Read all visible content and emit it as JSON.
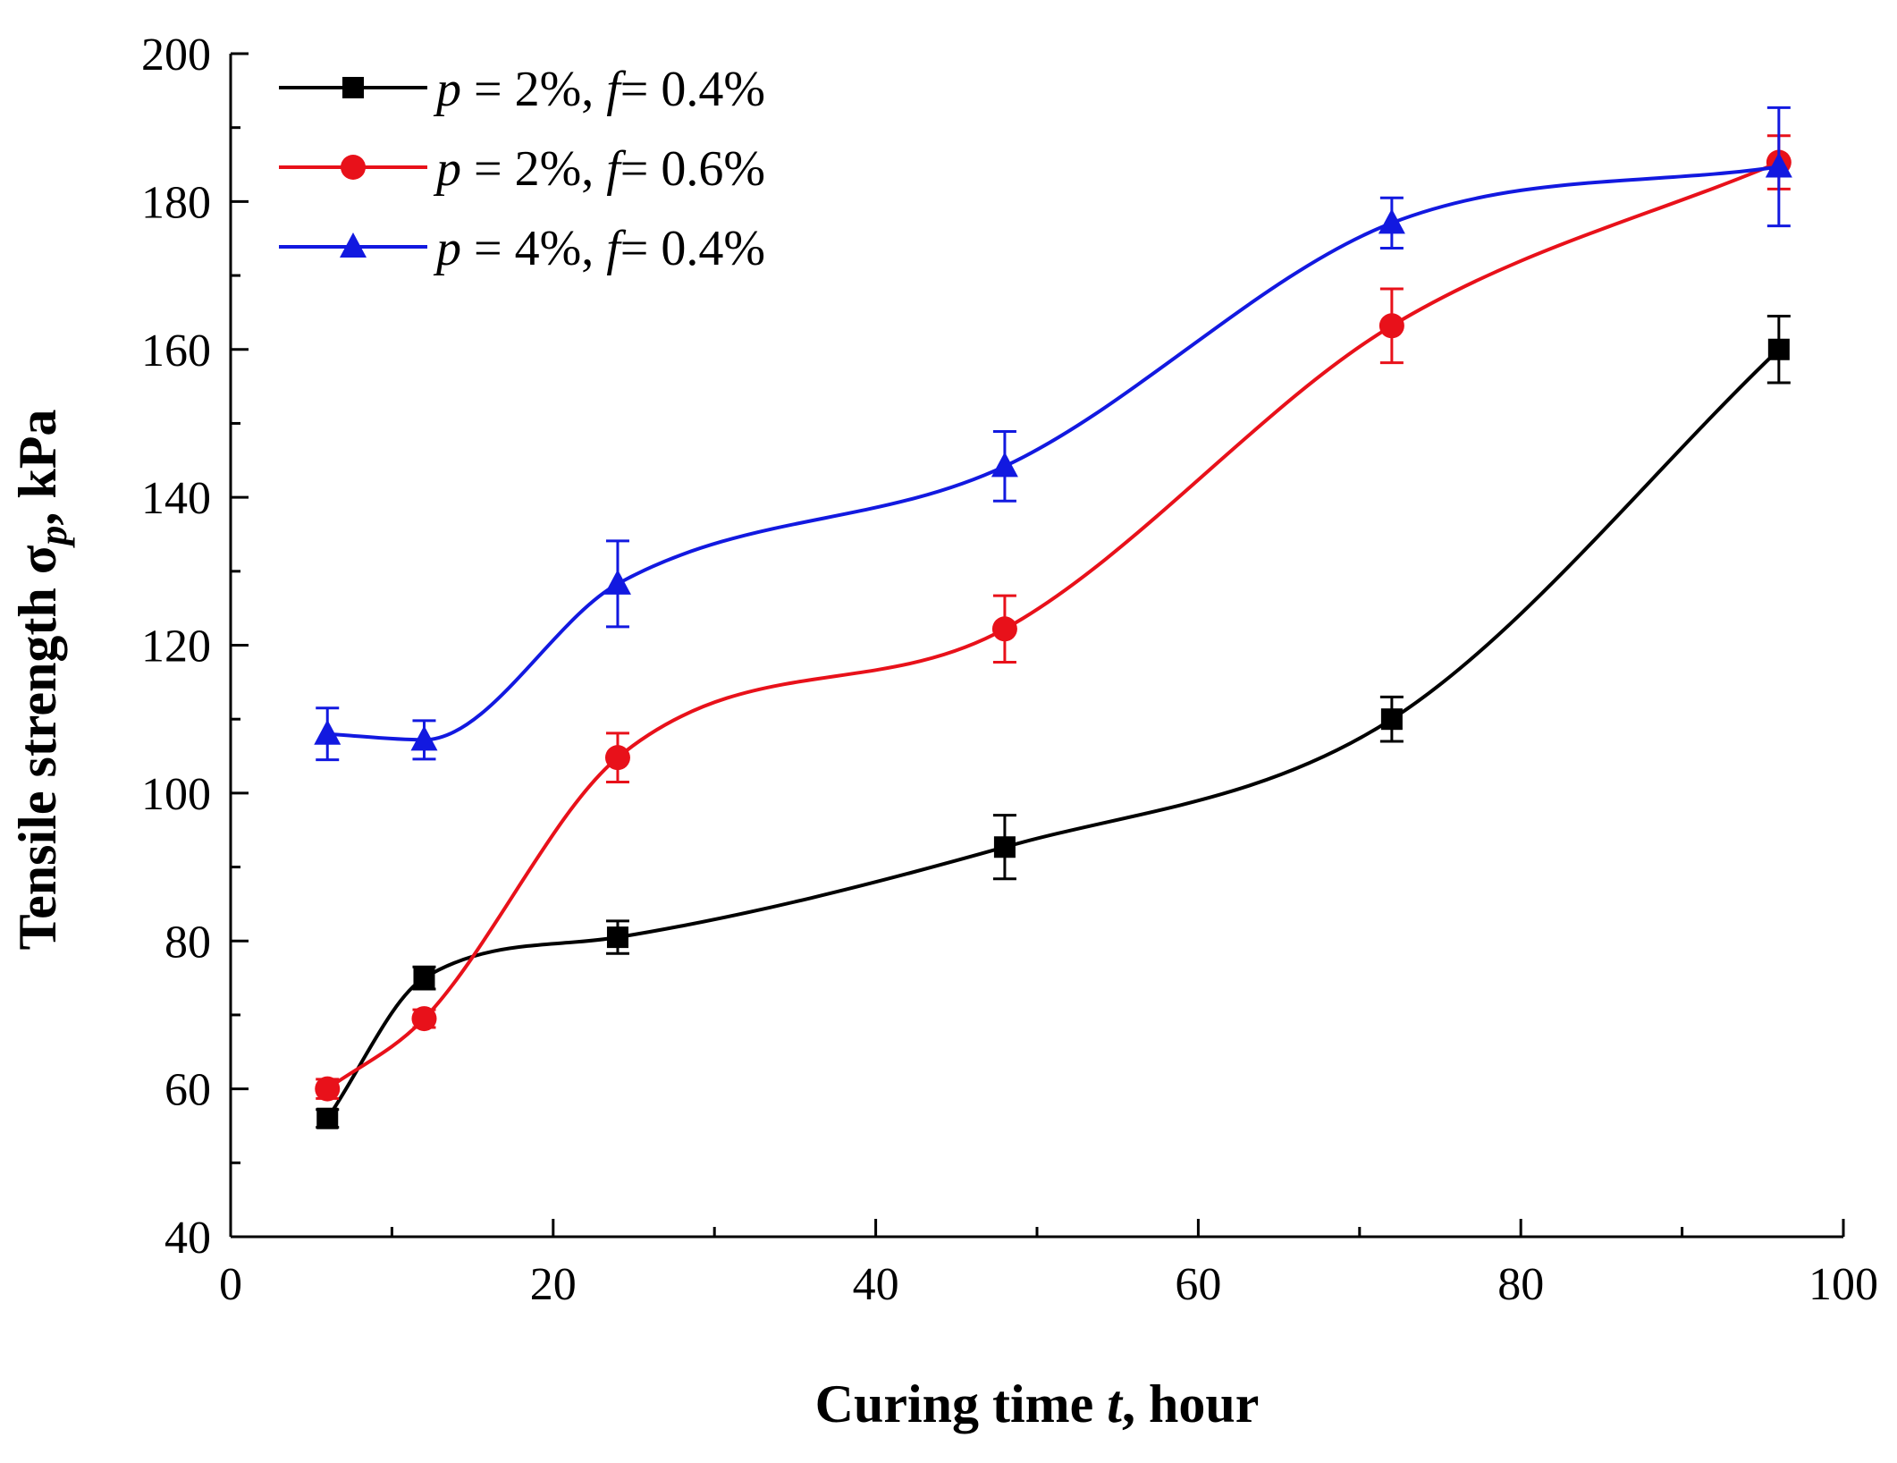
{
  "chart_data": {
    "type": "line",
    "xlabel": "Curing time t, hour",
    "ylabel": "Tensile strength σp, kPa",
    "xlim": [
      0,
      100
    ],
    "ylim": [
      40,
      200
    ],
    "x_ticks": [
      0,
      20,
      40,
      60,
      80,
      100
    ],
    "y_ticks": [
      40,
      60,
      80,
      100,
      120,
      140,
      160,
      180,
      200
    ],
    "x_tick_labels": [
      "0",
      "20",
      "40",
      "60",
      "80",
      "100"
    ],
    "y_tick_labels": [
      "40",
      "60",
      "80",
      "100",
      "120",
      "140",
      "160",
      "180",
      "200"
    ],
    "grid": false,
    "legend_position": "top-left",
    "x": [
      6,
      12,
      24,
      48,
      72,
      96
    ],
    "series": [
      {
        "name": "p = 2%, f = 0.4%",
        "name_parts": {
          "p": "p",
          "p_val": " = 2%, ",
          "f": "f",
          "f_val": "= 0.4%"
        },
        "color": "#000000",
        "marker": "square",
        "values": [
          56,
          75,
          80.5,
          92.7,
          110,
          160
        ],
        "errors": [
          1.2,
          1.5,
          2.2,
          4.3,
          3,
          4.5
        ]
      },
      {
        "name": "p = 2%, f = 0.6%",
        "name_parts": {
          "p": "p",
          "p_val": " = 2%, ",
          "f": "f",
          "f_val": "= 0.6%"
        },
        "color": "#e8111a",
        "marker": "circle",
        "values": [
          60,
          69.5,
          104.8,
          122.2,
          163.2,
          185.3
        ],
        "errors": [
          1.3,
          1.2,
          3.3,
          4.5,
          5,
          3.6
        ]
      },
      {
        "name": "p = 4%, f = 0.4%",
        "name_parts": {
          "p": "p",
          "p_val": " = 4%, ",
          "f": "f",
          "f_val": "= 0.4%"
        },
        "color": "#1219e0",
        "marker": "triangle",
        "values": [
          108,
          107.2,
          128.3,
          144.2,
          177.1,
          184.7
        ],
        "errors": [
          3.5,
          2.6,
          5.8,
          4.7,
          3.4,
          8
        ]
      }
    ]
  }
}
